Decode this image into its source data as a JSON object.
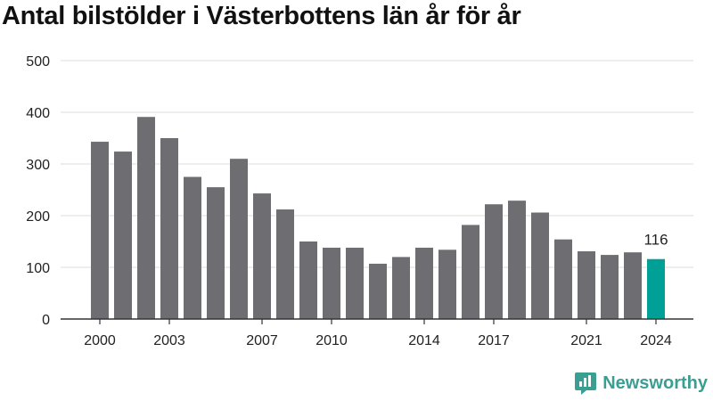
{
  "chart_data": {
    "type": "bar",
    "title": "Antal bilstölder i Västerbottens län år för år",
    "x": [
      2000,
      2001,
      2002,
      2003,
      2004,
      2005,
      2006,
      2007,
      2008,
      2009,
      2010,
      2011,
      2012,
      2013,
      2014,
      2015,
      2016,
      2017,
      2018,
      2019,
      2020,
      2021,
      2022,
      2023,
      2024
    ],
    "values": [
      343,
      324,
      391,
      350,
      275,
      255,
      310,
      243,
      212,
      150,
      138,
      138,
      107,
      120,
      138,
      134,
      182,
      222,
      229,
      206,
      154,
      131,
      124,
      129,
      116
    ],
    "xticks": [
      2000,
      2003,
      2007,
      2010,
      2014,
      2017,
      2021,
      2024
    ],
    "yticks": [
      0,
      100,
      200,
      300,
      400,
      500
    ],
    "ylim": [
      0,
      500
    ],
    "grid": true,
    "bar_color": "#6e6d72",
    "highlight_color": "#00a096",
    "highlight_index": 24,
    "annotation": "116"
  },
  "brand": {
    "name": "Newsworthy",
    "icon": "newsworthy-logo-icon",
    "color": "#3a9e93"
  }
}
